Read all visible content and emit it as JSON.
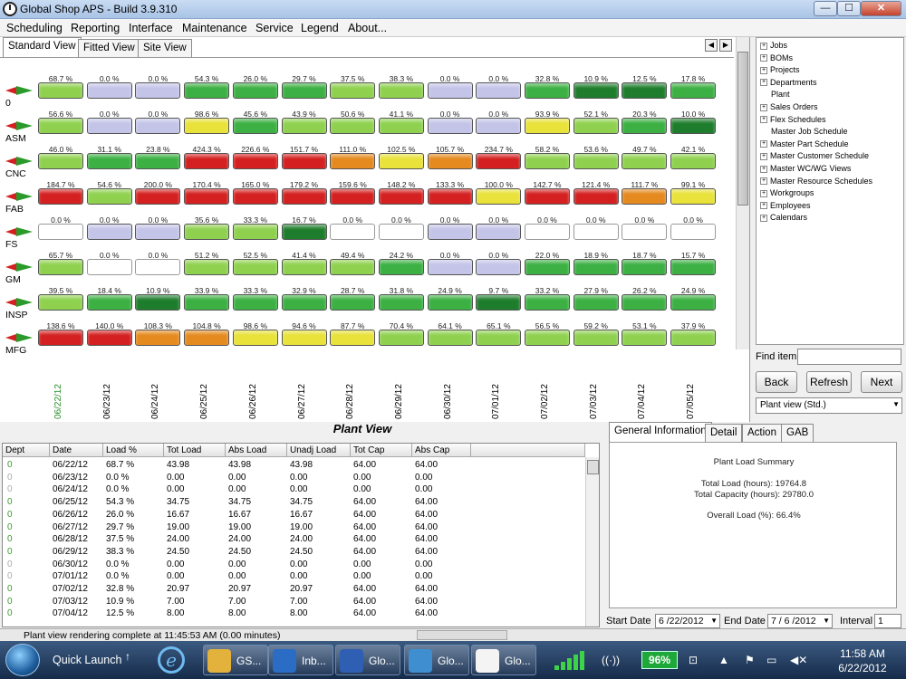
{
  "window": {
    "title": "Global Shop APS - Build 3.9.310",
    "min": "—",
    "max": "☐",
    "close": "✕"
  },
  "menu": [
    "Scheduling",
    "Reporting",
    "Interface",
    "Maintenance",
    "Service",
    "Legend",
    "About..."
  ],
  "view_tabs": [
    "Standard View",
    "Fitted View",
    "Site View"
  ],
  "nav": {
    "prev": "◀",
    "next": "▶"
  },
  "colors": {
    "green_dark": "#1e7d2c",
    "green": "#3cb043",
    "green_light": "#8fd14f",
    "yellow": "#e8e23a",
    "orange": "#e58a1f",
    "red": "#d42020",
    "lavender": "#c4c4e8",
    "empty": "#ffffff"
  },
  "dates": [
    "06/22/12",
    "06/23/12",
    "06/24/12",
    "06/25/12",
    "06/26/12",
    "06/27/12",
    "06/28/12",
    "06/29/12",
    "06/30/12",
    "07/01/12",
    "07/02/12",
    "07/03/12",
    "07/04/12",
    "07/05/12"
  ],
  "departments": [
    {
      "name": "0",
      "values": [
        "68.7 %",
        "0.0 %",
        "0.0 %",
        "54.3 %",
        "26.0 %",
        "29.7 %",
        "37.5 %",
        "38.3 %",
        "0.0 %",
        "0.0 %",
        "32.8 %",
        "10.9 %",
        "12.5 %",
        "17.8 %"
      ],
      "colors": [
        "green_light",
        "lavender",
        "lavender",
        "green",
        "green",
        "green",
        "green_light",
        "green_light",
        "lavender",
        "lavender",
        "green",
        "green_dark",
        "green_dark",
        "green"
      ]
    },
    {
      "name": "ASM",
      "values": [
        "56.6 %",
        "0.0 %",
        "0.0 %",
        "98.6 %",
        "45.6 %",
        "43.9 %",
        "50.6 %",
        "41.1 %",
        "0.0 %",
        "0.0 %",
        "93.9 %",
        "52.1 %",
        "20.3 %",
        "10.0 %"
      ],
      "colors": [
        "green_light",
        "lavender",
        "lavender",
        "yellow",
        "green",
        "green_light",
        "green_light",
        "green_light",
        "lavender",
        "lavender",
        "yellow",
        "green_light",
        "green",
        "green_dark"
      ]
    },
    {
      "name": "CNC",
      "values": [
        "46.0 %",
        "31.1 %",
        "23.8 %",
        "424.3 %",
        "226.6 %",
        "151.7 %",
        "111.0 %",
        "102.5 %",
        "105.7 %",
        "234.7 %",
        "58.2 %",
        "53.6 %",
        "49.7 %",
        "42.1 %"
      ],
      "colors": [
        "green_light",
        "green",
        "green",
        "red",
        "red",
        "red",
        "orange",
        "yellow",
        "orange",
        "red",
        "green_light",
        "green_light",
        "green_light",
        "green_light"
      ]
    },
    {
      "name": "FAB",
      "values": [
        "184.7 %",
        "54.6 %",
        "200.0 %",
        "170.4 %",
        "165.0 %",
        "179.2 %",
        "159.6 %",
        "148.2 %",
        "133.3 %",
        "100.0 %",
        "142.7 %",
        "121.4 %",
        "111.7 %",
        "99.1 %"
      ],
      "colors": [
        "red",
        "green_light",
        "red",
        "red",
        "red",
        "red",
        "red",
        "red",
        "red",
        "yellow",
        "red",
        "red",
        "orange",
        "yellow"
      ]
    },
    {
      "name": "FS",
      "values": [
        "0.0 %",
        "0.0 %",
        "0.0 %",
        "35.6 %",
        "33.3 %",
        "16.7 %",
        "0.0 %",
        "0.0 %",
        "0.0 %",
        "0.0 %",
        "0.0 %",
        "0.0 %",
        "0.0 %",
        "0.0 %"
      ],
      "colors": [
        "empty",
        "lavender",
        "lavender",
        "green_light",
        "green_light",
        "green_dark",
        "empty",
        "empty",
        "lavender",
        "lavender",
        "empty",
        "empty",
        "empty",
        "empty"
      ]
    },
    {
      "name": "GM",
      "values": [
        "65.7 %",
        "0.0 %",
        "0.0 %",
        "51.2 %",
        "52.5 %",
        "41.4 %",
        "49.4 %",
        "24.2 %",
        "0.0 %",
        "0.0 %",
        "22.0 %",
        "18.9 %",
        "18.7 %",
        "15.7 %"
      ],
      "colors": [
        "green_light",
        "empty",
        "empty",
        "green_light",
        "green_light",
        "green_light",
        "green_light",
        "green",
        "lavender",
        "lavender",
        "green",
        "green",
        "green",
        "green"
      ]
    },
    {
      "name": "INSP",
      "values": [
        "39.5 %",
        "18.4 %",
        "10.9 %",
        "33.9 %",
        "33.3 %",
        "32.9 %",
        "28.7 %",
        "31.8 %",
        "24.9 %",
        "9.7 %",
        "33.2 %",
        "27.9 %",
        "26.2 %",
        "24.9 %"
      ],
      "colors": [
        "green_light",
        "green",
        "green_dark",
        "green",
        "green",
        "green",
        "green",
        "green",
        "green",
        "green_dark",
        "green",
        "green",
        "green",
        "green"
      ]
    },
    {
      "name": "MFG",
      "values": [
        "138.6 %",
        "140.0 %",
        "108.3 %",
        "104.8 %",
        "98.6 %",
        "94.6 %",
        "87.7 %",
        "70.4 %",
        "64.1 %",
        "65.1 %",
        "56.5 %",
        "59.2 %",
        "53.1 %",
        "37.9 %"
      ],
      "colors": [
        "red",
        "red",
        "orange",
        "orange",
        "yellow",
        "yellow",
        "yellow",
        "green_light",
        "green_light",
        "green_light",
        "green_light",
        "green_light",
        "green_light",
        "green_light"
      ]
    }
  ],
  "tree": [
    {
      "label": "Jobs",
      "expand": true
    },
    {
      "label": "BOMs",
      "expand": true
    },
    {
      "label": "Projects",
      "expand": true
    },
    {
      "label": "Departments",
      "expand": true
    },
    {
      "label": "Plant",
      "expand": false
    },
    {
      "label": "Sales Orders",
      "expand": true
    },
    {
      "label": "Flex Schedules",
      "expand": true
    },
    {
      "label": "Master Job Schedule",
      "expand": false
    },
    {
      "label": "Master Part Schedule",
      "expand": true
    },
    {
      "label": "Master Customer Schedule",
      "expand": true
    },
    {
      "label": "Master WC/WG Views",
      "expand": true
    },
    {
      "label": "Master Resource Schedules",
      "expand": true
    },
    {
      "label": "Workgroups",
      "expand": true
    },
    {
      "label": "Employees",
      "expand": true
    },
    {
      "label": "Calendars",
      "expand": true
    }
  ],
  "find_item_label": "Find item",
  "buttons": {
    "back": "Back",
    "refresh": "Refresh",
    "next": "Next"
  },
  "view_select": "Plant view (Std.)",
  "plant_view": {
    "title": "Plant View",
    "columns": [
      "Dept",
      "Date",
      "Load %",
      "Tot Load",
      "Abs Load",
      "Unadj Load",
      "Tot Cap",
      "Abs Cap"
    ],
    "rows": [
      [
        "0",
        "06/22/12",
        "68.7 %",
        "43.98",
        "43.98",
        "43.98",
        "64.00",
        "64.00"
      ],
      [
        "0",
        "06/23/12",
        "0.0 %",
        "0.00",
        "0.00",
        "0.00",
        "0.00",
        "0.00"
      ],
      [
        "0",
        "06/24/12",
        "0.0 %",
        "0.00",
        "0.00",
        "0.00",
        "0.00",
        "0.00"
      ],
      [
        "0",
        "06/25/12",
        "54.3 %",
        "34.75",
        "34.75",
        "34.75",
        "64.00",
        "64.00"
      ],
      [
        "0",
        "06/26/12",
        "26.0 %",
        "16.67",
        "16.67",
        "16.67",
        "64.00",
        "64.00"
      ],
      [
        "0",
        "06/27/12",
        "29.7 %",
        "19.00",
        "19.00",
        "19.00",
        "64.00",
        "64.00"
      ],
      [
        "0",
        "06/28/12",
        "37.5 %",
        "24.00",
        "24.00",
        "24.00",
        "64.00",
        "64.00"
      ],
      [
        "0",
        "06/29/12",
        "38.3 %",
        "24.50",
        "24.50",
        "24.50",
        "64.00",
        "64.00"
      ],
      [
        "0",
        "06/30/12",
        "0.0 %",
        "0.00",
        "0.00",
        "0.00",
        "0.00",
        "0.00"
      ],
      [
        "0",
        "07/01/12",
        "0.0 %",
        "0.00",
        "0.00",
        "0.00",
        "0.00",
        "0.00"
      ],
      [
        "0",
        "07/02/12",
        "32.8 %",
        "20.97",
        "20.97",
        "20.97",
        "64.00",
        "64.00"
      ],
      [
        "0",
        "07/03/12",
        "10.9 %",
        "7.00",
        "7.00",
        "7.00",
        "64.00",
        "64.00"
      ],
      [
        "0",
        "07/04/12",
        "12.5 %",
        "8.00",
        "8.00",
        "8.00",
        "64.00",
        "64.00"
      ]
    ]
  },
  "info_tabs": [
    "General Information",
    "Detail",
    "Action",
    "GAB"
  ],
  "summary": {
    "title": "Plant Load Summary",
    "total_load": "Total Load (hours): 19764.8",
    "total_capacity": "Total Capacity (hours): 29780.0",
    "overall_load": "Overall Load (%): 66.4%"
  },
  "date_bar": {
    "start_label": "Start Date",
    "start_value": "6 /22/2012",
    "end_label": "End Date",
    "end_value": "7 / 6 /2012",
    "interval_label": "Interval",
    "interval_value": "1"
  },
  "status": "Plant view rendering complete at 11:45:53 AM  (0.00 minutes)",
  "taskbar": {
    "quick_launch": "Quick Launch",
    "tasks": [
      {
        "label": "GS...",
        "icon": "folder-icon",
        "color": "#e3b23c"
      },
      {
        "label": "Inb...",
        "icon": "outlook-icon",
        "color": "#2b6cc4"
      },
      {
        "label": "Glo...",
        "icon": "word-icon",
        "color": "#2f5fb3"
      },
      {
        "label": "Glo...",
        "icon": "globe-icon",
        "color": "#3f8fd0"
      },
      {
        "label": "Glo...",
        "icon": "clock-app-icon",
        "color": "#f4f4f4"
      }
    ],
    "battery": "96%",
    "time": "11:58 AM",
    "date": "6/22/2012"
  }
}
